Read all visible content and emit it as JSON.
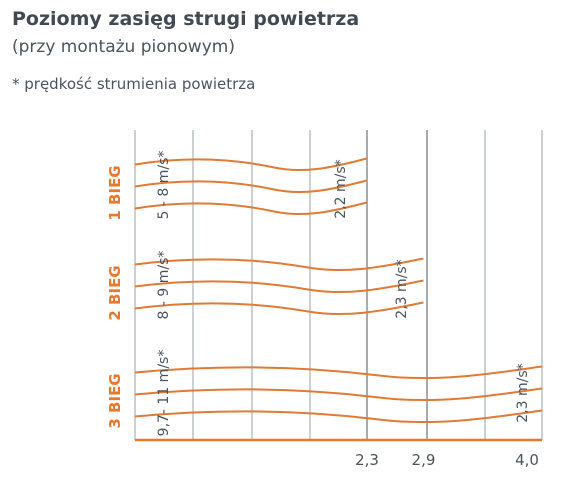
{
  "header": {
    "title": "Poziomy zasięg strugi powietrza",
    "subtitle": "(przy montażu pionowym)",
    "note": "* prędkość strumienia powietrza"
  },
  "colors": {
    "accent": "#e8782e",
    "text": "#4b545c",
    "grid": "#9aa0a6"
  },
  "chart_data": {
    "type": "bar",
    "orientation": "horizontal",
    "xlabel": "",
    "ylabel": "",
    "x_tick_labels": [
      "2,3",
      "2,9",
      "4,0"
    ],
    "xlim": [
      0,
      4.3
    ],
    "categories": [
      "1 BIEG",
      "2 BIEG",
      "3 BIEG"
    ],
    "values": [
      2.3,
      2.9,
      4.0
    ],
    "start_speed_labels": [
      "5 - 8 m/s*",
      "8 - 9 m/s*",
      "9,7- 11 m/s*"
    ],
    "end_speed_labels": [
      "2,2 m/s*",
      "2,3 m/s*",
      "2,3 m/s*"
    ],
    "style": "wavy airflow lines per gear"
  }
}
